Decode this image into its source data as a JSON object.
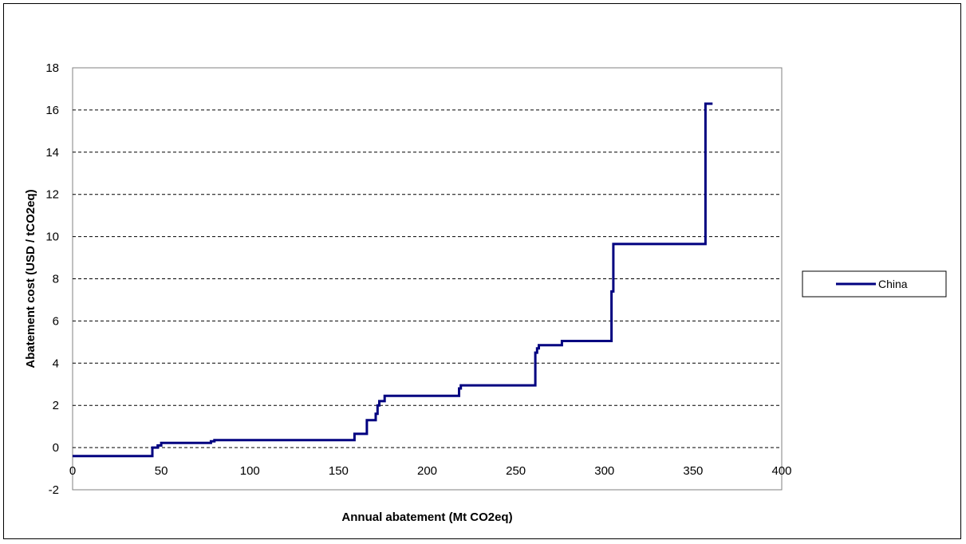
{
  "chart_data": {
    "type": "line",
    "title": "",
    "xlabel": "Annual abatement (Mt CO2eq)",
    "ylabel": "Abatement cost (USD / tCO2eq)",
    "xlim": [
      0,
      400
    ],
    "ylim": [
      -2,
      18
    ],
    "xticks": [
      0,
      50,
      100,
      150,
      200,
      250,
      300,
      350,
      400
    ],
    "yticks": [
      -2,
      0,
      2,
      4,
      6,
      8,
      10,
      12,
      14,
      16,
      18
    ],
    "grid": "horizontal dashed",
    "legend_position": "right",
    "colors": {
      "series": "#000080",
      "grid": "#000000",
      "plot_border": "#808080"
    },
    "series": [
      {
        "name": "China",
        "step": true,
        "x": [
          0,
          45,
          45,
          48,
          48,
          50,
          50,
          78,
          78,
          80,
          80,
          159,
          159,
          166,
          166,
          171,
          171,
          172,
          172,
          173,
          173,
          176,
          176,
          218,
          218,
          219,
          219,
          261,
          261,
          262,
          262,
          263,
          263,
          276,
          276,
          304,
          304,
          305,
          305,
          357,
          357,
          361
        ],
        "y": [
          -0.4,
          -0.4,
          0.0,
          0.0,
          0.1,
          0.1,
          0.22,
          0.22,
          0.3,
          0.3,
          0.35,
          0.35,
          0.65,
          0.65,
          1.3,
          1.3,
          1.6,
          1.6,
          2.0,
          2.0,
          2.2,
          2.2,
          2.45,
          2.45,
          2.8,
          2.8,
          2.95,
          2.95,
          4.5,
          4.5,
          4.7,
          4.7,
          4.85,
          4.85,
          5.05,
          5.05,
          7.4,
          7.4,
          9.65,
          9.65,
          16.3,
          16.3
        ]
      }
    ]
  }
}
